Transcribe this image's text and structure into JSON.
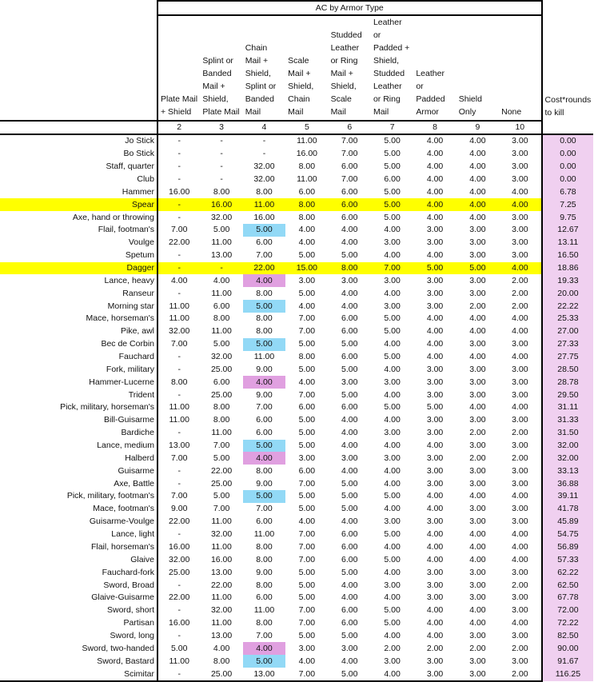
{
  "title": "AC by Armor Type",
  "columns": [
    {
      "label": "Plate Mail + Shield",
      "ac": "2"
    },
    {
      "label": "Splint or Banded Mail + Shield, Plate Mail",
      "ac": "3"
    },
    {
      "label": "Chain Mail + Shield, Splint or Banded Mail",
      "ac": "4"
    },
    {
      "label": "Scale Mail + Shield, Chain Mail",
      "ac": "5"
    },
    {
      "label": "Studded Leather or Ring Mail + Shield, Scale Mail",
      "ac": "6"
    },
    {
      "label": "Leather or Padded + Shield, Studded Leather or Ring Mail",
      "ac": "7"
    },
    {
      "label": "Leather or Padded Armor",
      "ac": "8"
    },
    {
      "label": "Shield Only",
      "ac": "9"
    },
    {
      "label": "None",
      "ac": "10"
    }
  ],
  "cost_header": "Cost*rounds to kill",
  "colors": {
    "row_highlight": "#ffff00",
    "blue_cell": "#92d9f6",
    "pink_cell": "#e0a0e0",
    "cost_column": "#f0d0f0"
  },
  "rows": [
    {
      "name": "Jo Stick",
      "values": [
        "-",
        "-",
        "-",
        "11.00",
        "7.00",
        "5.00",
        "4.00",
        "4.00",
        "3.00"
      ],
      "cost": "0.00"
    },
    {
      "name": "Bo Stick",
      "values": [
        "-",
        "-",
        "-",
        "16.00",
        "7.00",
        "5.00",
        "4.00",
        "4.00",
        "3.00"
      ],
      "cost": "0.00"
    },
    {
      "name": "Staff, quarter",
      "values": [
        "-",
        "-",
        "32.00",
        "8.00",
        "6.00",
        "5.00",
        "4.00",
        "4.00",
        "3.00"
      ],
      "cost": "0.00"
    },
    {
      "name": "Club",
      "values": [
        "-",
        "-",
        "32.00",
        "11.00",
        "7.00",
        "6.00",
        "4.00",
        "4.00",
        "3.00"
      ],
      "cost": "0.00"
    },
    {
      "name": "Hammer",
      "values": [
        "16.00",
        "8.00",
        "8.00",
        "6.00",
        "6.00",
        "5.00",
        "4.00",
        "4.00",
        "4.00"
      ],
      "cost": "6.78"
    },
    {
      "name": "Spear",
      "values": [
        "-",
        "16.00",
        "11.00",
        "8.00",
        "6.00",
        "5.00",
        "4.00",
        "4.00",
        "4.00"
      ],
      "cost": "7.25",
      "highlight": "yellow"
    },
    {
      "name": "Axe, hand or throwing",
      "values": [
        "-",
        "32.00",
        "16.00",
        "8.00",
        "6.00",
        "5.00",
        "4.00",
        "4.00",
        "3.00"
      ],
      "cost": "9.75"
    },
    {
      "name": "Flail, footman's",
      "values": [
        "7.00",
        "5.00",
        "5.00",
        "4.00",
        "4.00",
        "4.00",
        "3.00",
        "3.00",
        "3.00"
      ],
      "cost": "12.67",
      "cell_highlight": "blue"
    },
    {
      "name": "Voulge",
      "values": [
        "22.00",
        "11.00",
        "6.00",
        "4.00",
        "4.00",
        "3.00",
        "3.00",
        "3.00",
        "3.00"
      ],
      "cost": "13.11"
    },
    {
      "name": "Spetum",
      "values": [
        "-",
        "13.00",
        "7.00",
        "5.00",
        "5.00",
        "4.00",
        "4.00",
        "3.00",
        "3.00"
      ],
      "cost": "16.50"
    },
    {
      "name": "Dagger",
      "values": [
        "-",
        "-",
        "22.00",
        "15.00",
        "8.00",
        "7.00",
        "5.00",
        "5.00",
        "4.00"
      ],
      "cost": "18.86",
      "highlight": "yellow"
    },
    {
      "name": "Lance, heavy",
      "values": [
        "4.00",
        "4.00",
        "4.00",
        "3.00",
        "3.00",
        "3.00",
        "3.00",
        "3.00",
        "2.00"
      ],
      "cost": "19.33",
      "cell_highlight": "pink"
    },
    {
      "name": "Ranseur",
      "values": [
        "-",
        "11.00",
        "8.00",
        "5.00",
        "4.00",
        "4.00",
        "3.00",
        "3.00",
        "2.00"
      ],
      "cost": "20.00"
    },
    {
      "name": "Morning star",
      "values": [
        "11.00",
        "6.00",
        "5.00",
        "4.00",
        "4.00",
        "3.00",
        "3.00",
        "2.00",
        "2.00"
      ],
      "cost": "22.22",
      "cell_highlight": "blue"
    },
    {
      "name": "Mace, horseman's",
      "values": [
        "11.00",
        "8.00",
        "8.00",
        "7.00",
        "6.00",
        "5.00",
        "4.00",
        "4.00",
        "4.00"
      ],
      "cost": "25.33"
    },
    {
      "name": "Pike, awl",
      "values": [
        "32.00",
        "11.00",
        "8.00",
        "7.00",
        "6.00",
        "5.00",
        "4.00",
        "4.00",
        "4.00"
      ],
      "cost": "27.00"
    },
    {
      "name": "Bec de Corbin",
      "values": [
        "7.00",
        "5.00",
        "5.00",
        "5.00",
        "5.00",
        "4.00",
        "4.00",
        "3.00",
        "3.00"
      ],
      "cost": "27.33",
      "cell_highlight": "blue"
    },
    {
      "name": "Fauchard",
      "values": [
        "-",
        "32.00",
        "11.00",
        "8.00",
        "6.00",
        "5.00",
        "4.00",
        "4.00",
        "4.00"
      ],
      "cost": "27.75"
    },
    {
      "name": "Fork, military",
      "values": [
        "-",
        "25.00",
        "9.00",
        "5.00",
        "5.00",
        "4.00",
        "3.00",
        "3.00",
        "3.00"
      ],
      "cost": "28.50"
    },
    {
      "name": "Hammer-Lucerne",
      "values": [
        "8.00",
        "6.00",
        "4.00",
        "4.00",
        "3.00",
        "3.00",
        "3.00",
        "3.00",
        "3.00"
      ],
      "cost": "28.78",
      "cell_highlight": "pink"
    },
    {
      "name": "Trident",
      "values": [
        "-",
        "25.00",
        "9.00",
        "7.00",
        "5.00",
        "4.00",
        "3.00",
        "3.00",
        "3.00"
      ],
      "cost": "29.50"
    },
    {
      "name": "Pick, military, horseman's",
      "values": [
        "11.00",
        "8.00",
        "7.00",
        "6.00",
        "6.00",
        "5.00",
        "5.00",
        "4.00",
        "4.00"
      ],
      "cost": "31.11"
    },
    {
      "name": "Bill-Guisarme",
      "values": [
        "11.00",
        "8.00",
        "6.00",
        "5.00",
        "4.00",
        "4.00",
        "3.00",
        "3.00",
        "3.00"
      ],
      "cost": "31.33"
    },
    {
      "name": "Bardiche",
      "values": [
        "-",
        "11.00",
        "6.00",
        "5.00",
        "4.00",
        "3.00",
        "3.00",
        "2.00",
        "2.00"
      ],
      "cost": "31.50"
    },
    {
      "name": "Lance, medium",
      "values": [
        "13.00",
        "7.00",
        "5.00",
        "5.00",
        "4.00",
        "4.00",
        "4.00",
        "3.00",
        "3.00"
      ],
      "cost": "32.00",
      "cell_highlight": "blue"
    },
    {
      "name": "Halberd",
      "values": [
        "7.00",
        "5.00",
        "4.00",
        "3.00",
        "3.00",
        "3.00",
        "3.00",
        "2.00",
        "2.00"
      ],
      "cost": "32.00",
      "cell_highlight": "pink"
    },
    {
      "name": "Guisarme",
      "values": [
        "-",
        "22.00",
        "8.00",
        "6.00",
        "4.00",
        "4.00",
        "3.00",
        "3.00",
        "3.00"
      ],
      "cost": "33.13"
    },
    {
      "name": "Axe, Battle",
      "values": [
        "-",
        "25.00",
        "9.00",
        "7.00",
        "5.00",
        "4.00",
        "3.00",
        "3.00",
        "3.00"
      ],
      "cost": "36.88"
    },
    {
      "name": "Pick, military, footman's",
      "values": [
        "7.00",
        "5.00",
        "5.00",
        "5.00",
        "5.00",
        "5.00",
        "4.00",
        "4.00",
        "4.00"
      ],
      "cost": "39.11",
      "cell_highlight": "blue"
    },
    {
      "name": "Mace, footman's",
      "values": [
        "9.00",
        "7.00",
        "7.00",
        "5.00",
        "5.00",
        "4.00",
        "4.00",
        "3.00",
        "3.00"
      ],
      "cost": "41.78"
    },
    {
      "name": "Guisarme-Voulge",
      "values": [
        "22.00",
        "11.00",
        "6.00",
        "4.00",
        "4.00",
        "3.00",
        "3.00",
        "3.00",
        "3.00"
      ],
      "cost": "45.89"
    },
    {
      "name": "Lance, light",
      "values": [
        "-",
        "32.00",
        "11.00",
        "7.00",
        "6.00",
        "5.00",
        "4.00",
        "4.00",
        "4.00"
      ],
      "cost": "54.75"
    },
    {
      "name": "Flail, horseman's",
      "values": [
        "16.00",
        "11.00",
        "8.00",
        "7.00",
        "6.00",
        "4.00",
        "4.00",
        "4.00",
        "4.00"
      ],
      "cost": "56.89"
    },
    {
      "name": "Glaive",
      "values": [
        "32.00",
        "16.00",
        "8.00",
        "7.00",
        "6.00",
        "5.00",
        "4.00",
        "4.00",
        "4.00"
      ],
      "cost": "57.33"
    },
    {
      "name": "Fauchard-fork",
      "values": [
        "25.00",
        "13.00",
        "9.00",
        "5.00",
        "5.00",
        "4.00",
        "3.00",
        "3.00",
        "3.00"
      ],
      "cost": "62.22"
    },
    {
      "name": "Sword, Broad",
      "values": [
        "-",
        "22.00",
        "8.00",
        "5.00",
        "4.00",
        "3.00",
        "3.00",
        "3.00",
        "2.00"
      ],
      "cost": "62.50"
    },
    {
      "name": "Glaive-Guisarme",
      "values": [
        "22.00",
        "11.00",
        "6.00",
        "5.00",
        "4.00",
        "4.00",
        "3.00",
        "3.00",
        "3.00"
      ],
      "cost": "67.78"
    },
    {
      "name": "Sword, short",
      "values": [
        "-",
        "32.00",
        "11.00",
        "7.00",
        "6.00",
        "5.00",
        "4.00",
        "4.00",
        "3.00"
      ],
      "cost": "72.00"
    },
    {
      "name": "Partisan",
      "values": [
        "16.00",
        "11.00",
        "8.00",
        "7.00",
        "6.00",
        "5.00",
        "4.00",
        "4.00",
        "4.00"
      ],
      "cost": "72.22"
    },
    {
      "name": "Sword, long",
      "values": [
        "-",
        "13.00",
        "7.00",
        "5.00",
        "5.00",
        "4.00",
        "4.00",
        "3.00",
        "3.00"
      ],
      "cost": "82.50"
    },
    {
      "name": "Sword, two-handed",
      "values": [
        "5.00",
        "4.00",
        "4.00",
        "3.00",
        "3.00",
        "2.00",
        "2.00",
        "2.00",
        "2.00"
      ],
      "cost": "90.00",
      "cell_highlight": "pink"
    },
    {
      "name": "Sword, Bastard",
      "values": [
        "11.00",
        "8.00",
        "5.00",
        "4.00",
        "4.00",
        "3.00",
        "3.00",
        "3.00",
        "3.00"
      ],
      "cost": "91.67",
      "cell_highlight": "blue"
    },
    {
      "name": "Scimitar",
      "values": [
        "-",
        "25.00",
        "13.00",
        "7.00",
        "5.00",
        "4.00",
        "3.00",
        "3.00",
        "2.00"
      ],
      "cost": "116.25"
    }
  ]
}
